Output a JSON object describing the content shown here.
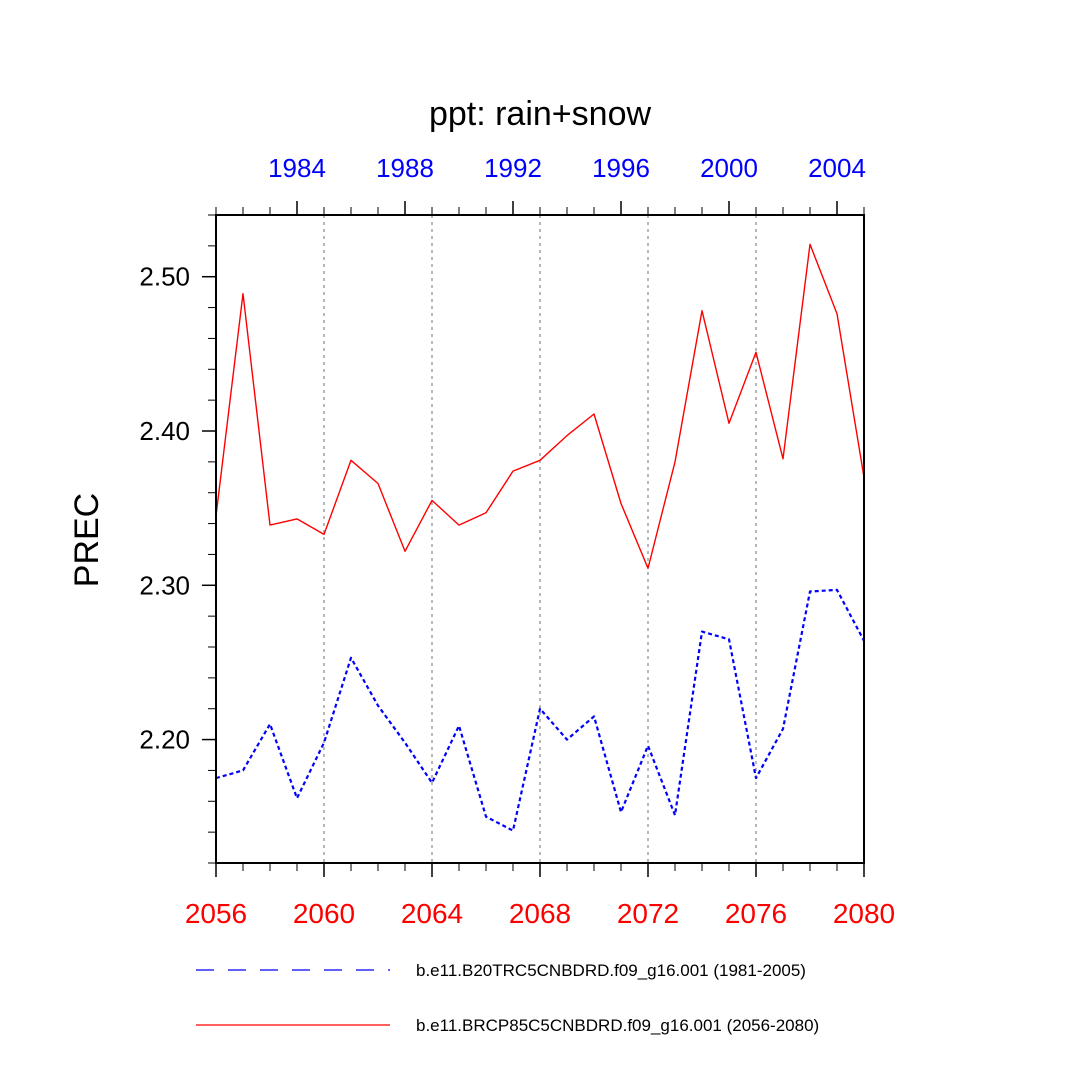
{
  "chart_data": {
    "type": "line",
    "title": "ppt: rain+snow",
    "ylabel": "PREC",
    "ylim": [
      2.12,
      2.54
    ],
    "y_ticks": [
      2.2,
      2.3,
      2.4,
      2.5
    ],
    "y_tick_labels": [
      "2.20",
      "2.30",
      "2.40",
      "2.50"
    ],
    "bottom_axis": {
      "range": [
        2056,
        2080
      ],
      "tick_values": [
        2056,
        2060,
        2064,
        2068,
        2072,
        2076,
        2080
      ],
      "tick_labels": [
        "2056",
        "2060",
        "2064",
        "2068",
        "2072",
        "2076",
        "2080"
      ],
      "color": "#ff0000"
    },
    "top_axis": {
      "range": [
        1981,
        2005
      ],
      "tick_values": [
        1984,
        1988,
        1992,
        1996,
        2000,
        2004
      ],
      "tick_labels": [
        "1984",
        "1988",
        "1992",
        "1996",
        "2000",
        "2004"
      ],
      "color": "#0000ff"
    },
    "vertical_gridlines_at": [
      2060,
      2064,
      2068,
      2072,
      2076
    ],
    "series": [
      {
        "name": "b.e11.B20TRC5CNBDRD.f09_g16.001 (1981-2005)",
        "color": "#0000ff",
        "style": "dashed",
        "axis": "top",
        "x": [
          1981,
          1982,
          1983,
          1984,
          1985,
          1986,
          1987,
          1988,
          1989,
          1990,
          1991,
          1992,
          1993,
          1994,
          1995,
          1996,
          1997,
          1998,
          1999,
          2000,
          2001,
          2002,
          2003,
          2004,
          2005
        ],
        "values": [
          2.175,
          2.18,
          2.21,
          2.162,
          2.198,
          2.253,
          2.222,
          2.198,
          2.172,
          2.209,
          2.15,
          2.141,
          2.22,
          2.2,
          2.215,
          2.153,
          2.196,
          2.151,
          2.27,
          2.265,
          2.175,
          2.207,
          2.296,
          2.297,
          2.264
        ]
      },
      {
        "name": "b.e11.BRCP85C5CNBDRD.f09_g16.001 (2056-2080)",
        "color": "#ff0000",
        "style": "solid",
        "axis": "bottom",
        "x": [
          2056,
          2057,
          2058,
          2059,
          2060,
          2061,
          2062,
          2063,
          2064,
          2065,
          2066,
          2067,
          2068,
          2069,
          2070,
          2071,
          2072,
          2073,
          2074,
          2075,
          2076,
          2077,
          2078,
          2079,
          2080
        ],
        "values": [
          2.345,
          2.489,
          2.339,
          2.343,
          2.333,
          2.381,
          2.366,
          2.322,
          2.355,
          2.339,
          2.347,
          2.374,
          2.381,
          2.397,
          2.411,
          2.353,
          2.311,
          2.38,
          2.478,
          2.405,
          2.451,
          2.382,
          2.521,
          2.476,
          2.37
        ]
      }
    ],
    "legend_position": "bottom"
  }
}
